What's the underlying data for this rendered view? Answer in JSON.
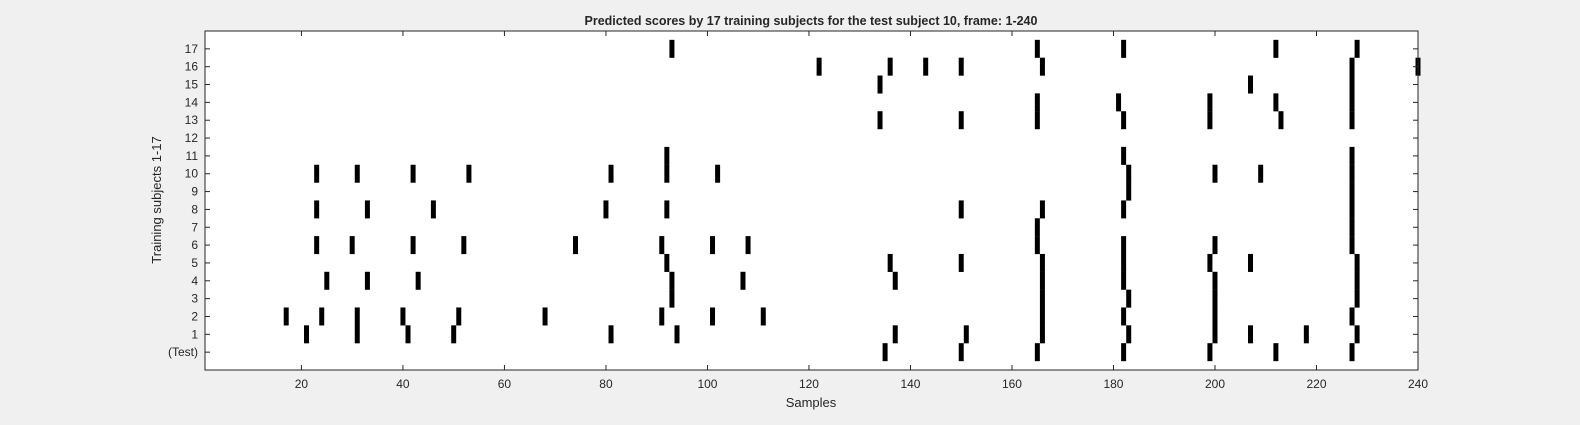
{
  "chart_data": {
    "type": "raster",
    "title": "Predicted scores by 17 training subjects for the test subject 10, frame: 1-240",
    "xlabel": "Samples",
    "ylabel": "Training subjects 1-17",
    "xlim": [
      1,
      240
    ],
    "xticks": [
      20,
      40,
      60,
      80,
      100,
      120,
      140,
      160,
      180,
      200,
      220,
      240
    ],
    "yticklabels": [
      "(Test)",
      "1",
      "2",
      "3",
      "4",
      "5",
      "6",
      "7",
      "8",
      "9",
      "10",
      "11",
      "12",
      "13",
      "14",
      "15",
      "16",
      "17"
    ],
    "background_color": "#ffffff",
    "mark_color": "#000000",
    "rows": [
      {
        "label": "17",
        "x": [
          93,
          165,
          182,
          212,
          228
        ]
      },
      {
        "label": "16",
        "x": [
          122,
          136,
          143,
          150,
          166,
          227,
          240
        ]
      },
      {
        "label": "15",
        "x": [
          134,
          207,
          227
        ]
      },
      {
        "label": "14",
        "x": [
          165,
          181,
          199,
          212,
          227
        ]
      },
      {
        "label": "13",
        "x": [
          134,
          150,
          165,
          182,
          199,
          213,
          227
        ]
      },
      {
        "label": "12",
        "x": []
      },
      {
        "label": "11",
        "x": [
          92,
          182,
          227
        ]
      },
      {
        "label": "10",
        "x": [
          23,
          31,
          42,
          53,
          81,
          92,
          102,
          183,
          200,
          209,
          227
        ]
      },
      {
        "label": "9",
        "x": [
          183,
          227
        ]
      },
      {
        "label": "8",
        "x": [
          23,
          33,
          46,
          80,
          92,
          150,
          166,
          182,
          227
        ]
      },
      {
        "label": "7",
        "x": [
          165,
          227
        ]
      },
      {
        "label": "6",
        "x": [
          23,
          30,
          42,
          52,
          74,
          91,
          101,
          108,
          165,
          182,
          200,
          227
        ]
      },
      {
        "label": "5",
        "x": [
          92,
          136,
          150,
          166,
          182,
          199,
          207,
          228
        ]
      },
      {
        "label": "4",
        "x": [
          25,
          33,
          43,
          93,
          107,
          137,
          166,
          182,
          200,
          228
        ]
      },
      {
        "label": "3",
        "x": [
          93,
          166,
          183,
          200,
          228
        ]
      },
      {
        "label": "2",
        "x": [
          17,
          24,
          31,
          40,
          51,
          68,
          91,
          101,
          111,
          166,
          182,
          200,
          227
        ]
      },
      {
        "label": "1",
        "x": [
          21,
          31,
          41,
          50,
          81,
          94,
          137,
          151,
          166,
          183,
          200,
          207,
          218,
          228
        ]
      },
      {
        "label": "(Test)",
        "x": [
          135,
          150,
          165,
          182,
          199,
          212,
          227
        ]
      }
    ]
  }
}
